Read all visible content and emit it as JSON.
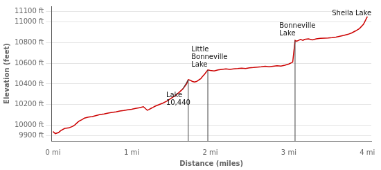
{
  "chart_data": {
    "type": "line",
    "xlabel": "Distance (miles)",
    "ylabel": "Elevation (feet)",
    "color": "#cc0000",
    "grid": "y",
    "xlim": [
      -0.02,
      4.05
    ],
    "ylim": [
      9850,
      11150
    ],
    "xticks": [
      {
        "value": 0,
        "label": "0 mi"
      },
      {
        "value": 1,
        "label": "1 mi"
      },
      {
        "value": 2,
        "label": "2 mi"
      },
      {
        "value": 3,
        "label": "3 mi"
      },
      {
        "value": 4,
        "label": "4 mi"
      }
    ],
    "yticks": [
      {
        "value": 9900,
        "label": "9900 ft"
      },
      {
        "value": 10000,
        "label": "10000 ft"
      },
      {
        "value": 10200,
        "label": "10200 ft"
      },
      {
        "value": 10400,
        "label": "10400 ft"
      },
      {
        "value": 10600,
        "label": "10600 ft"
      },
      {
        "value": 10800,
        "label": "10800 ft"
      },
      {
        "value": 11000,
        "label": "11000 ft"
      },
      {
        "value": 11100,
        "label": "11100 ft"
      }
    ],
    "x": [
      0.0,
      0.03,
      0.07,
      0.1,
      0.15,
      0.2,
      0.25,
      0.28,
      0.3,
      0.33,
      0.37,
      0.4,
      0.45,
      0.5,
      0.55,
      0.6,
      0.65,
      0.7,
      0.75,
      0.8,
      0.85,
      0.9,
      0.95,
      1.0,
      1.05,
      1.1,
      1.15,
      1.2,
      1.22,
      1.25,
      1.27,
      1.3,
      1.35,
      1.4,
      1.45,
      1.5,
      1.55,
      1.6,
      1.65,
      1.7,
      1.72,
      1.75,
      1.77,
      1.8,
      1.83,
      1.85,
      1.88,
      1.9,
      1.93,
      1.95,
      1.97,
      2.0,
      2.05,
      2.1,
      2.15,
      2.2,
      2.25,
      2.3,
      2.35,
      2.4,
      2.45,
      2.5,
      2.55,
      2.6,
      2.65,
      2.7,
      2.75,
      2.8,
      2.85,
      2.9,
      2.95,
      3.0,
      3.05,
      3.08,
      3.1,
      3.13,
      3.15,
      3.18,
      3.2,
      3.25,
      3.3,
      3.35,
      3.4,
      3.45,
      3.5,
      3.55,
      3.6,
      3.65,
      3.7,
      3.75,
      3.8,
      3.85,
      3.9,
      3.95,
      4.0
    ],
    "values": [
      9940,
      9920,
      9930,
      9950,
      9970,
      9975,
      9990,
      10005,
      10020,
      10040,
      10055,
      10070,
      10080,
      10085,
      10095,
      10105,
      10110,
      10118,
      10125,
      10130,
      10138,
      10143,
      10150,
      10155,
      10163,
      10170,
      10180,
      10145,
      10152,
      10165,
      10172,
      10185,
      10200,
      10215,
      10235,
      10260,
      10285,
      10315,
      10350,
      10400,
      10440,
      10435,
      10425,
      10418,
      10425,
      10435,
      10450,
      10470,
      10495,
      10515,
      10535,
      10530,
      10525,
      10535,
      10540,
      10545,
      10540,
      10545,
      10548,
      10552,
      10548,
      10555,
      10558,
      10562,
      10565,
      10570,
      10565,
      10570,
      10575,
      10572,
      10580,
      10592,
      10610,
      10820,
      10812,
      10822,
      10830,
      10820,
      10830,
      10835,
      10825,
      10835,
      10840,
      10842,
      10843,
      10847,
      10852,
      10860,
      10868,
      10878,
      10892,
      10912,
      10935,
      10975,
      11050
    ],
    "annotations": [
      {
        "label": "Lake\n10,440",
        "x": 1.72,
        "y": 10440,
        "text_x": 1.44,
        "text_y": 10250,
        "line": true,
        "leader": [
          1.65,
          10350,
          1.72,
          10440
        ]
      },
      {
        "label": "Little\nBonneville\nLake",
        "x": 1.97,
        "y": 10535,
        "text_x": 1.76,
        "text_y": 10660,
        "line": true,
        "leader": false
      },
      {
        "label": "Bonneville\nLake",
        "x": 3.08,
        "y": 10820,
        "text_x": 2.88,
        "text_y": 10920,
        "line": true,
        "leader": false
      },
      {
        "label": "Sheila Lake",
        "x": 4.0,
        "y": 11050,
        "text_x": 3.55,
        "text_y": 11080,
        "line": false,
        "leader": false
      }
    ]
  }
}
